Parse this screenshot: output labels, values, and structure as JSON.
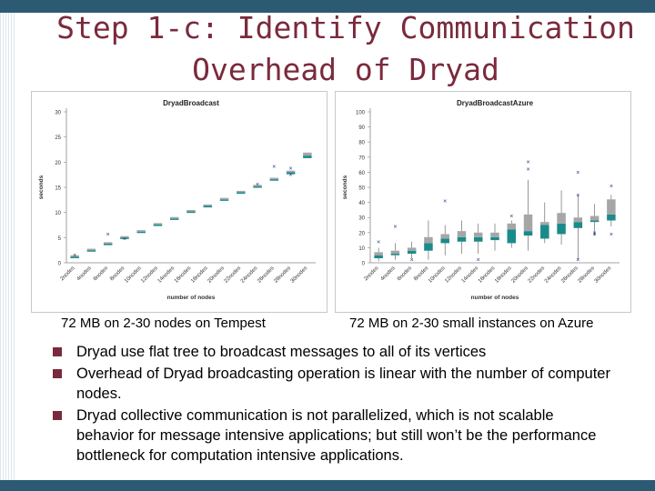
{
  "slide": {
    "title_line1": "Step 1-c: Identify Communication",
    "title_line2": "Overhead of Dryad",
    "caption_left": "72 MB on 2-30 nodes on Tempest",
    "caption_right": "72 MB on 2-30 small instances on Azure",
    "bullets": [
      "Dryad use flat tree to broadcast messages to all of its vertices",
      "Overhead of Dryad broadcasting operation is linear with the number of computer nodes.",
      "Dryad collective communication is not parallelized, which is not scalable behavior for message intensive applications; but still won’t be the performance bottleneck for computation intensive applications."
    ],
    "colors": {
      "title": "#7a2a3c",
      "bar": "#2c5a73",
      "box_gray": "#a6a6a6",
      "box_teal": "#1b8a8a",
      "outlier": "#1f3d7a"
    }
  },
  "chart_data": [
    {
      "type": "box",
      "title": "DryadBroadcast",
      "xlabel": "number of nodes",
      "ylabel": "seconds",
      "ylim": [
        0,
        30
      ],
      "yticks": [
        0,
        5,
        10,
        15,
        20,
        25,
        30
      ],
      "categories": [
        "2nodes",
        "4nodes",
        "6nodes",
        "8nodes",
        "10nodes",
        "12nodes",
        "14nodes",
        "16nodes",
        "18nodes",
        "20nodes",
        "22nodes",
        "24nodes",
        "26nodes",
        "28nodes",
        "30nodes"
      ],
      "median": [
        1.2,
        2.5,
        3.8,
        5.0,
        6.2,
        7.6,
        8.8,
        10.2,
        11.3,
        12.6,
        14.0,
        15.2,
        16.6,
        18.0,
        21.3
      ],
      "q1": [
        1.1,
        2.4,
        3.6,
        4.9,
        6.1,
        7.5,
        8.7,
        10.0,
        11.1,
        12.5,
        13.8,
        15.0,
        16.4,
        17.6,
        20.8
      ],
      "q3": [
        1.3,
        2.6,
        4.0,
        5.1,
        6.3,
        7.7,
        8.9,
        10.3,
        11.4,
        12.7,
        14.1,
        15.4,
        16.8,
        18.3,
        21.9
      ],
      "outliers": [
        [
          0,
          1.5
        ],
        [
          2,
          5.7
        ],
        [
          3,
          4.8
        ],
        [
          11,
          15.6
        ],
        [
          12,
          19.2
        ],
        [
          13,
          17.5
        ],
        [
          13,
          18.8
        ]
      ]
    },
    {
      "type": "box",
      "title": "DryadBroadcastAzure",
      "xlabel": "number of nodes",
      "ylabel": "seconds",
      "ylim": [
        0,
        100
      ],
      "yticks": [
        0,
        10,
        20,
        30,
        40,
        50,
        60,
        70,
        80,
        90,
        100
      ],
      "categories": [
        "2nodes",
        "4nodes",
        "6nodes",
        "8nodes",
        "10nodes",
        "12nodes",
        "14nodes",
        "16nodes",
        "18nodes",
        "20nodes",
        "22nodes",
        "24nodes",
        "26nodes",
        "28nodes",
        "30nodes"
      ],
      "q1": [
        3,
        5,
        6,
        8,
        13,
        14,
        14,
        15,
        13,
        18,
        16,
        19,
        23,
        27,
        28
      ],
      "median": [
        5,
        6,
        8,
        13,
        16,
        17,
        17,
        17,
        22,
        21,
        25,
        26,
        27,
        28,
        32
      ],
      "q3": [
        7,
        8,
        10,
        17,
        19,
        21,
        20,
        20,
        26,
        32,
        27,
        33,
        30,
        31,
        42
      ],
      "whisker_low": [
        1,
        2,
        3,
        2,
        5,
        6,
        6,
        8,
        10,
        8,
        13,
        12,
        2,
        18,
        24
      ],
      "whisker_high": [
        10,
        13,
        14,
        28,
        25,
        28,
        26,
        26,
        28,
        55,
        40,
        48,
        45,
        39,
        45
      ],
      "outliers": [
        [
          0,
          14
        ],
        [
          1,
          24
        ],
        [
          2,
          2
        ],
        [
          4,
          41
        ],
        [
          6,
          2
        ],
        [
          8,
          31
        ],
        [
          9,
          62
        ],
        [
          9,
          67
        ],
        [
          12,
          60
        ],
        [
          12,
          45
        ],
        [
          12,
          2
        ],
        [
          13,
          20
        ],
        [
          13,
          19
        ],
        [
          14,
          51
        ],
        [
          14,
          19
        ]
      ]
    }
  ]
}
